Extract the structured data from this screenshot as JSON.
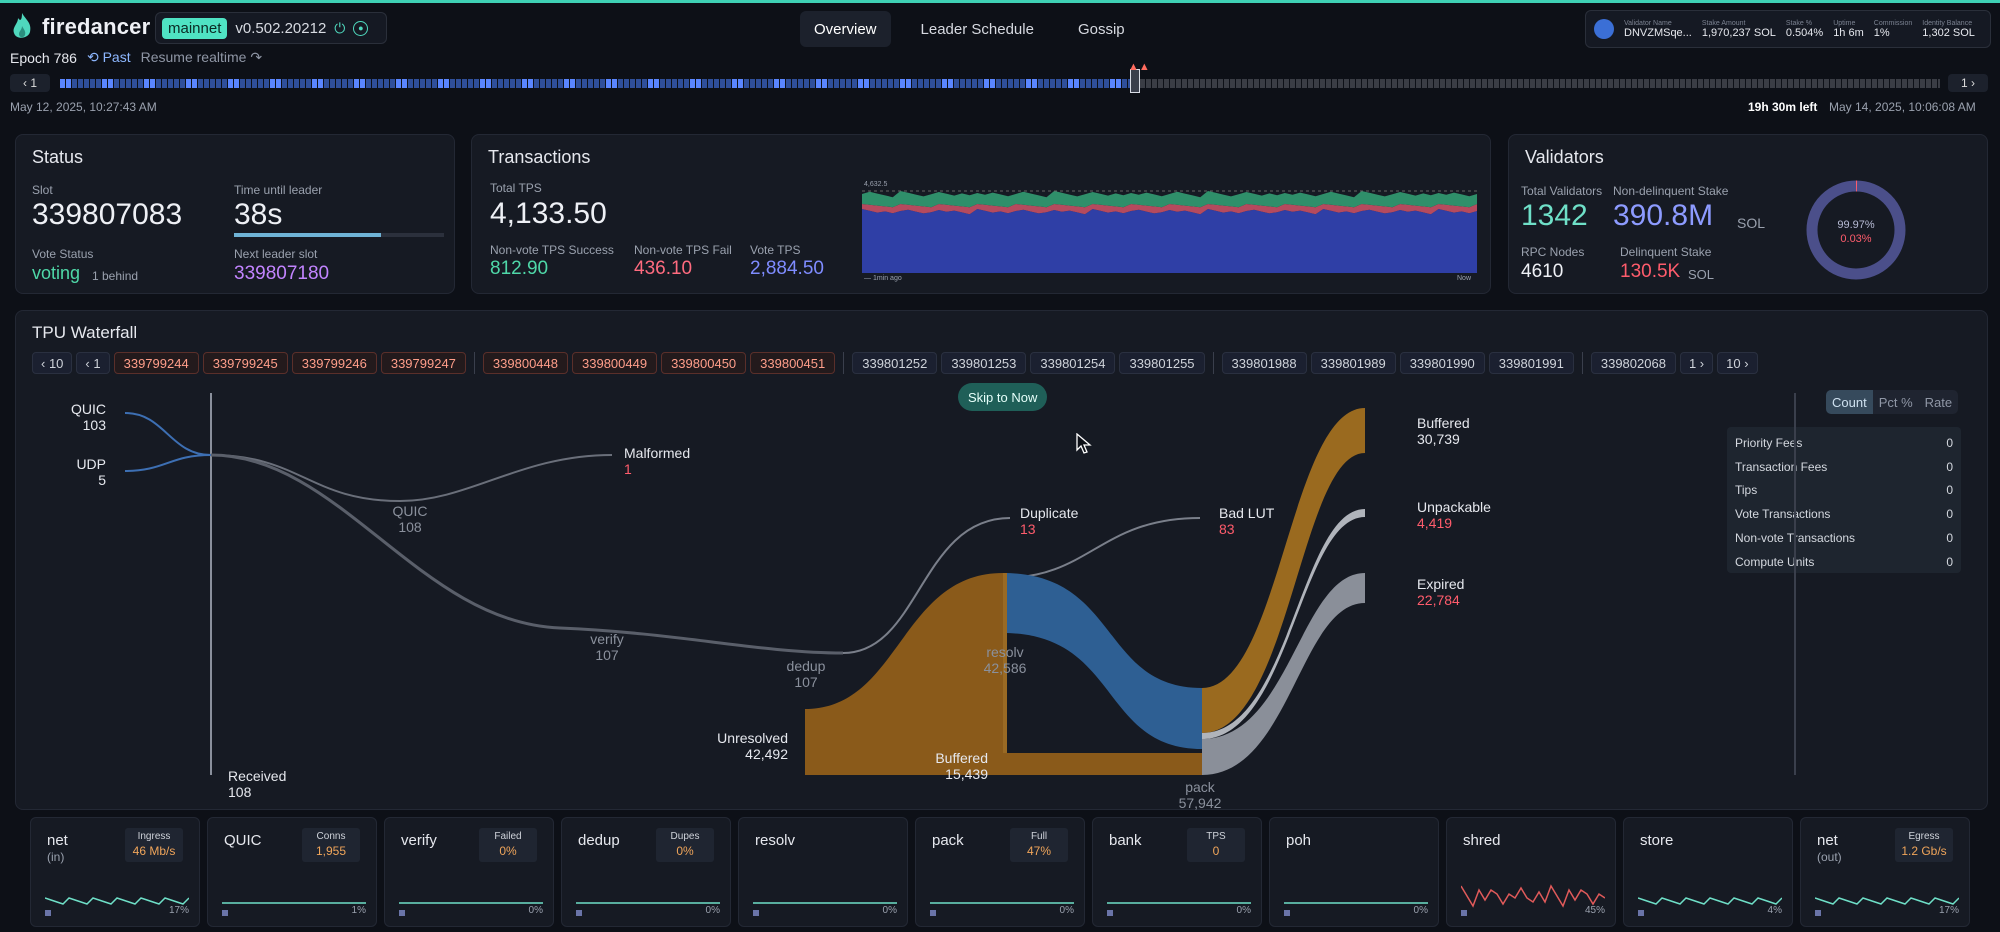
{
  "header": {
    "brand": "firedancer",
    "network": "mainnet",
    "version": "v0.502.20212",
    "tabs": [
      "Overview",
      "Leader Schedule",
      "Gossip"
    ],
    "validator": {
      "name_label": "Validator Name",
      "name": "DNVZMSqe...",
      "stake_label": "Stake Amount",
      "stake": "1,970,237 SOL",
      "stakepct_label": "Stake %",
      "stakepct": "0.504%",
      "uptime_label": "Uptime",
      "uptime": "1h 6m",
      "commission_label": "Commission",
      "commission": "1%",
      "balance_label": "Identity Balance",
      "balance": "1,302 SOL"
    }
  },
  "epoch": {
    "label": "Epoch 786",
    "past": "Past",
    "resume": "Resume realtime"
  },
  "timeline": {
    "prev": "1",
    "next": "1",
    "start": "May 12, 2025, 10:27:43 AM",
    "left": "19h 30m left",
    "end": "May 14, 2025, 10:06:08 AM"
  },
  "status": {
    "title": "Status",
    "slot_label": "Slot",
    "slot": "339807083",
    "time_label": "Time until leader",
    "time": "38s",
    "vote_label": "Vote Status",
    "vote": "voting",
    "behind": "1 behind",
    "next_label": "Next leader slot",
    "next": "339807180",
    "time_progress": 0.7
  },
  "transactions": {
    "title": "Transactions",
    "tps_label": "Total TPS",
    "tps": "4,133.50",
    "success_label": "Non-vote TPS Success",
    "success": "812.90",
    "fail_label": "Non-vote TPS Fail",
    "fail": "436.10",
    "vote_label": "Vote TPS",
    "vote": "2,884.50",
    "chart_max": "4,632.5",
    "chart_left": "— 1min ago",
    "chart_right": "Now"
  },
  "validators": {
    "title": "Validators",
    "total_label": "Total Validators",
    "total": "1342",
    "stake_label": "Non-delinquent Stake",
    "stake": "390.8M",
    "stake_unit": "SOL",
    "rpc_label": "RPC Nodes",
    "rpc": "4610",
    "delinq_label": "Delinquent Stake",
    "delinq": "130.5K",
    "delinq_unit": "SOL",
    "donut_top": "99.97%",
    "donut_bottom": "0.03%"
  },
  "waterfall": {
    "title": "TPU Waterfall",
    "nav_left_big": "10",
    "nav_left_small": "1",
    "nav_right_small": "1",
    "nav_right_big": "10",
    "slots_red": [
      "339799244",
      "339799245",
      "339799246",
      "339799247",
      "339800448",
      "339800449",
      "339800450",
      "339800451"
    ],
    "slots_a": [
      "339801252",
      "339801253",
      "339801254",
      "339801255"
    ],
    "slots_b": [
      "339801988",
      "339801989",
      "339801990",
      "339801991"
    ],
    "slots_c": [
      "339802068"
    ],
    "skip": "Skip to Now",
    "modes": [
      "Count",
      "Pct %",
      "Rate"
    ],
    "fees": [
      {
        "label": "Priority Fees",
        "value": "0"
      },
      {
        "label": "Transaction Fees",
        "value": "0"
      },
      {
        "label": "Tips",
        "value": "0"
      },
      {
        "label": "Vote Transactions",
        "value": "0"
      },
      {
        "label": "Non-vote Transactions",
        "value": "0"
      },
      {
        "label": "Compute Units",
        "value": "0"
      }
    ],
    "nodes": {
      "quic_in": {
        "label": "QUIC",
        "value": "103"
      },
      "udp": {
        "label": "UDP",
        "value": "5"
      },
      "quic": {
        "label": "QUIC",
        "value": "108"
      },
      "malformed": {
        "label": "Malformed",
        "value": "1"
      },
      "verify": {
        "label": "verify",
        "value": "107"
      },
      "dedup": {
        "label": "dedup",
        "value": "107"
      },
      "duplicate": {
        "label": "Duplicate",
        "value": "13"
      },
      "badlut": {
        "label": "Bad LUT",
        "value": "83"
      },
      "resolv": {
        "label": "resolv",
        "value": "42,586"
      },
      "unresolved": {
        "label": "Unresolved",
        "value": "42,492"
      },
      "buffered_in": {
        "label": "Buffered",
        "value": "15,439"
      },
      "pack": {
        "label": "pack",
        "value": "57,942"
      },
      "buffered_out": {
        "label": "Buffered",
        "value": "30,739"
      },
      "unpackable": {
        "label": "Unpackable",
        "value": "4,419"
      },
      "expired": {
        "label": "Expired",
        "value": "22,784"
      },
      "received": {
        "label": "Received",
        "value": "108"
      }
    }
  },
  "tiles": [
    {
      "name": "net",
      "sub": "(in)",
      "metric_label": "Ingress",
      "metric": "46 Mb/s",
      "pct": "17%"
    },
    {
      "name": "QUIC",
      "sub": "",
      "metric_label": "Conns",
      "metric": "1,955",
      "pct": "1%"
    },
    {
      "name": "verify",
      "sub": "",
      "metric_label": "Failed",
      "metric": "0%",
      "pct": "0%"
    },
    {
      "name": "dedup",
      "sub": "",
      "metric_label": "Dupes",
      "metric": "0%",
      "pct": "0%"
    },
    {
      "name": "resolv",
      "sub": "",
      "metric_label": "",
      "metric": "",
      "pct": "0%"
    },
    {
      "name": "pack",
      "sub": "",
      "metric_label": "Full",
      "metric": "47%",
      "pct": "0%"
    },
    {
      "name": "bank",
      "sub": "",
      "metric_label": "TPS",
      "metric": "0",
      "pct": "0%"
    },
    {
      "name": "poh",
      "sub": "",
      "metric_label": "",
      "metric": "",
      "pct": "0%"
    },
    {
      "name": "shred",
      "sub": "",
      "metric_label": "",
      "metric": "",
      "pct": "45%"
    },
    {
      "name": "store",
      "sub": "",
      "metric_label": "",
      "metric": "",
      "pct": "4%"
    },
    {
      "name": "net",
      "sub": "(out)",
      "metric_label": "Egress",
      "metric": "1.2 Gb/s",
      "pct": "17%"
    }
  ]
}
